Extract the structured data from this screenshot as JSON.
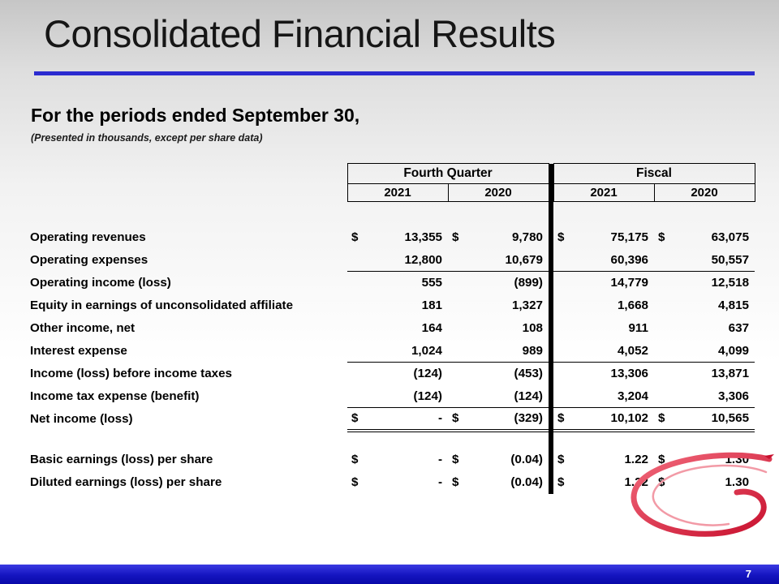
{
  "slide": {
    "title": "Consolidated Financial Results",
    "subtitle": "For the periods ended September 30,",
    "note": "(Presented in thousands, except per share data)",
    "page_number": "7",
    "accent_blue": "#2b2bd0",
    "footer_blue": "#1414c0",
    "swoosh_red": "#d81a2e"
  },
  "table": {
    "groups": [
      "Fourth Quarter",
      "Fiscal"
    ],
    "years": [
      "2021",
      "2020",
      "2021",
      "2020"
    ],
    "rows": [
      {
        "label": "Operating revenues",
        "dollars": true,
        "values": [
          "13,355",
          "9,780",
          "75,175",
          "63,075"
        ],
        "underline": "none"
      },
      {
        "label": "Operating expenses",
        "dollars": false,
        "values": [
          "12,800",
          "10,679",
          "60,396",
          "50,557"
        ],
        "underline": "single"
      },
      {
        "label": "Operating income (loss)",
        "dollars": false,
        "values": [
          "555",
          "(899)",
          "14,779",
          "12,518"
        ],
        "underline": "none"
      },
      {
        "label": "Equity in earnings of unconsolidated affiliate",
        "dollars": false,
        "values": [
          "181",
          "1,327",
          "1,668",
          "4,815"
        ],
        "underline": "none"
      },
      {
        "label": "Other income, net",
        "dollars": false,
        "values": [
          "164",
          "108",
          "911",
          "637"
        ],
        "underline": "none"
      },
      {
        "label": "Interest expense",
        "dollars": false,
        "values": [
          "1,024",
          "989",
          "4,052",
          "4,099"
        ],
        "underline": "single"
      },
      {
        "label": "Income (loss) before income taxes",
        "dollars": false,
        "values": [
          "(124)",
          "(453)",
          "13,306",
          "13,871"
        ],
        "underline": "none"
      },
      {
        "label": "Income tax expense (benefit)",
        "dollars": false,
        "values": [
          "(124)",
          "(124)",
          "3,204",
          "3,306"
        ],
        "underline": "single"
      },
      {
        "label": "Net income (loss)",
        "dollars": true,
        "values": [
          "-",
          "(329)",
          "10,102",
          "10,565"
        ],
        "underline": "double"
      },
      {
        "type": "spacer",
        "height": 22
      },
      {
        "label": "Basic earnings (loss) per share",
        "dollars": true,
        "values": [
          "-",
          "(0.04)",
          "1.22",
          "1.30"
        ],
        "underline": "none"
      },
      {
        "label": "Diluted earnings (loss) per share",
        "dollars": true,
        "values": [
          "-",
          "(0.04)",
          "1.22",
          "1.30"
        ],
        "underline": "none"
      }
    ]
  }
}
